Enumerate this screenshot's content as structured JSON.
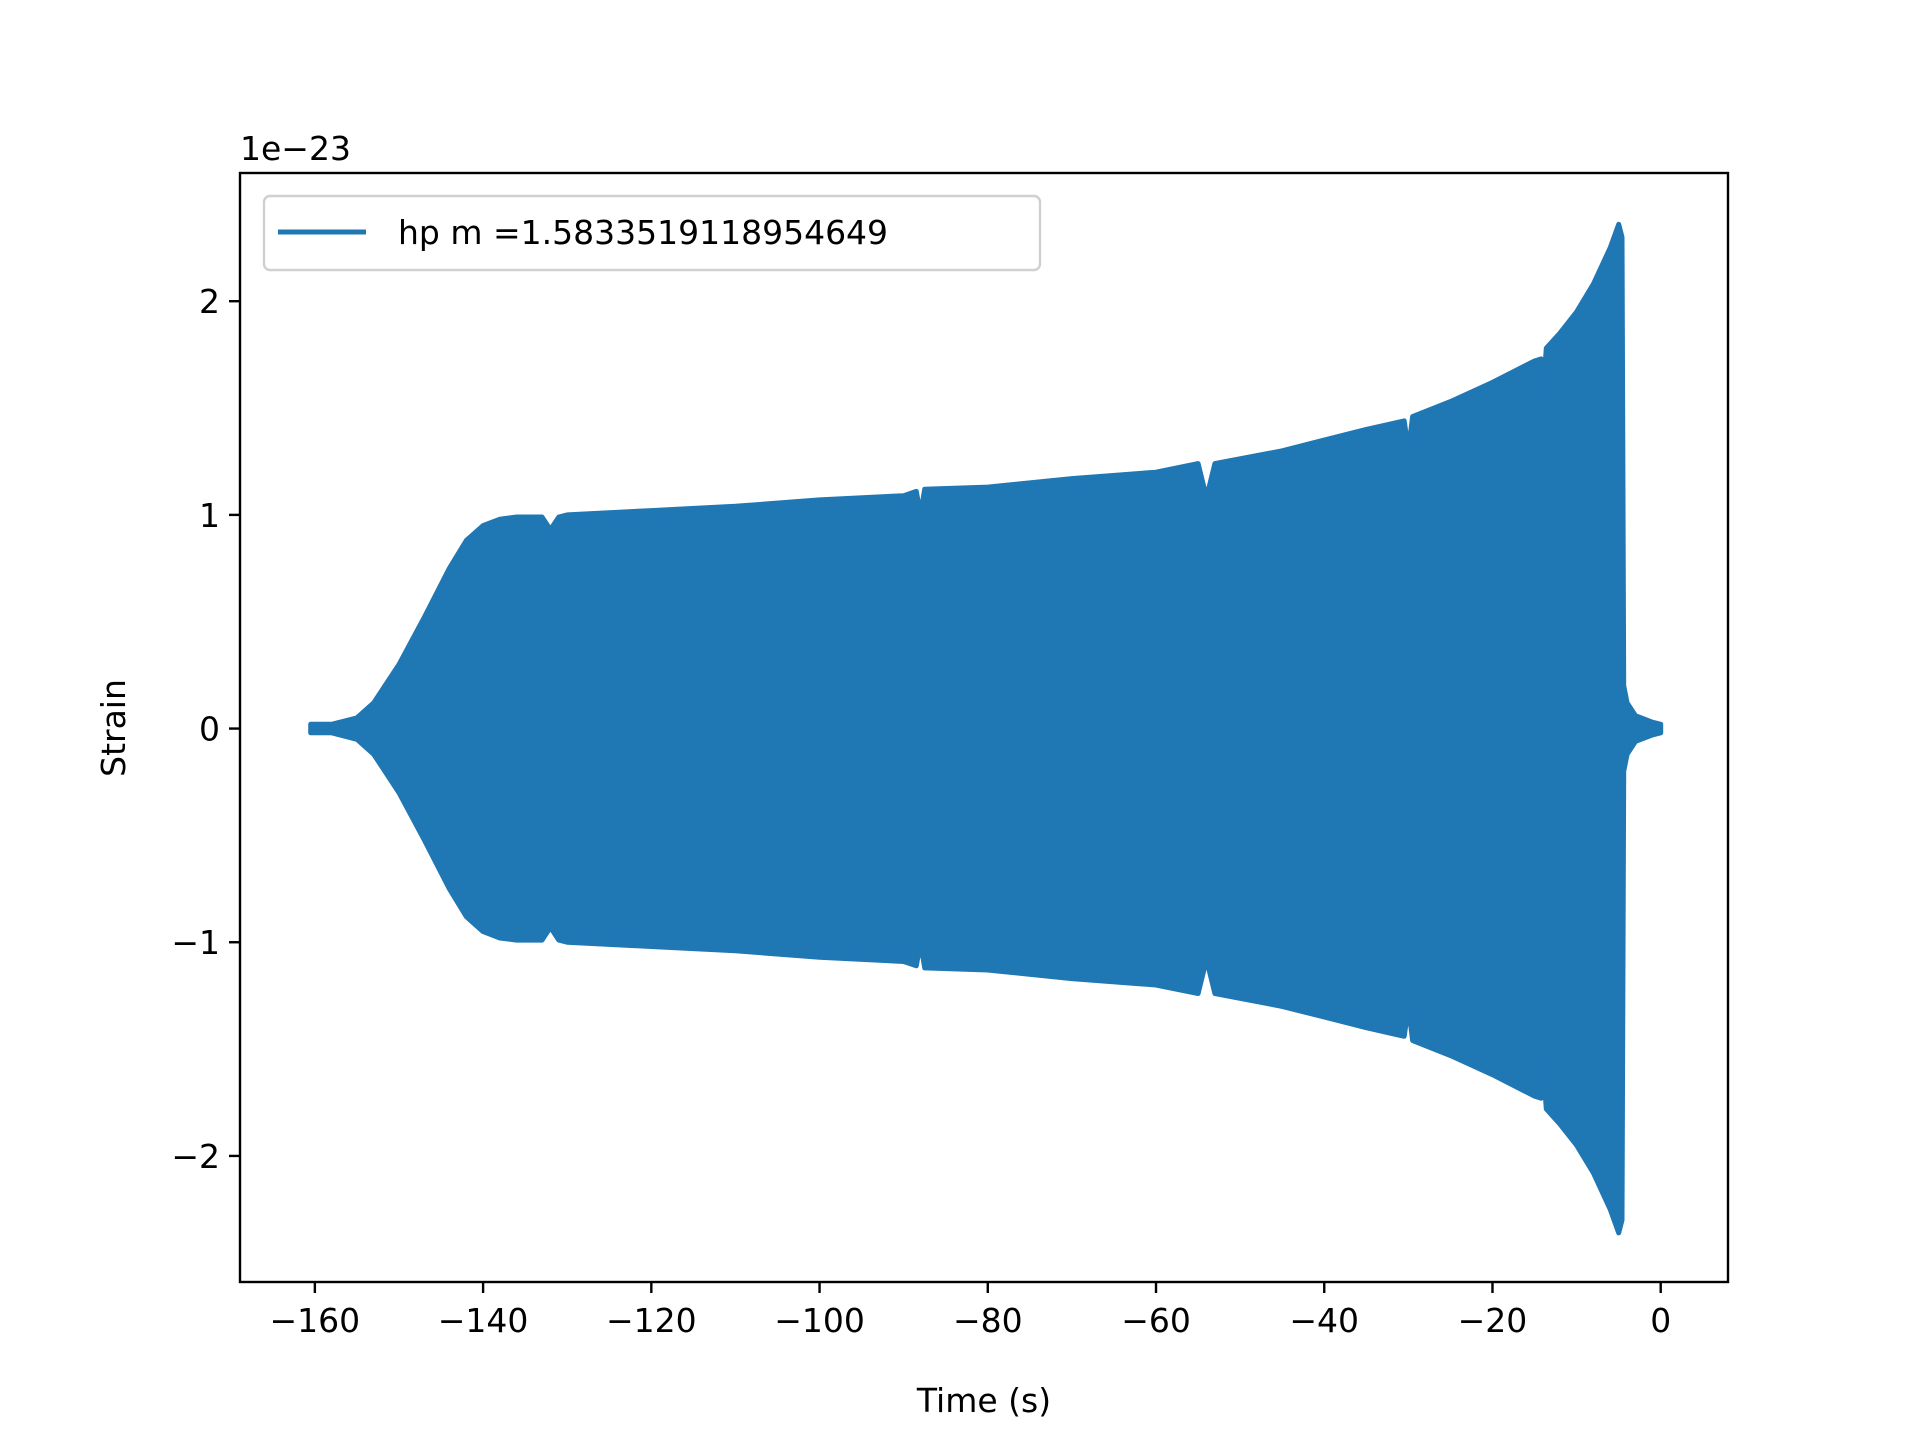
{
  "chart_data": {
    "type": "line",
    "title": "",
    "xlabel": "Time (s)",
    "ylabel": "Strain",
    "y_offset_label": "1e−23",
    "xlim": [
      -168.9,
      8.0
    ],
    "ylim": [
      -2.59,
      2.6
    ],
    "xticks": [
      -160,
      -140,
      -120,
      -100,
      -80,
      -60,
      -40,
      -20,
      0
    ],
    "xtick_labels": [
      "−160",
      "−140",
      "−120",
      "−100",
      "−80",
      "−60",
      "−40",
      "−20",
      "0"
    ],
    "yticks": [
      -2,
      -1,
      0,
      1,
      2
    ],
    "ytick_labels": [
      "−2",
      "−1",
      "0",
      "1",
      "2"
    ],
    "grid": false,
    "legend_placement": "upper-left",
    "series": [
      {
        "name": "hp m =1.5833519118954649",
        "color": "#1f77b4",
        "envelope_x": [
          -160.5,
          -158,
          -155,
          -153,
          -150,
          -147,
          -144,
          -142,
          -140,
          -138,
          -136,
          -133,
          -132,
          -131,
          -130,
          -120,
          -110,
          -100,
          -90,
          -88.5,
          -88,
          -87.5,
          -80,
          -70,
          -60,
          -55,
          -54,
          -53,
          -45,
          -40,
          -35,
          -30.5,
          -30,
          -29.5,
          -25,
          -20,
          -15,
          -14.2,
          -14,
          -13.6,
          -12,
          -10,
          -8,
          -6,
          -5,
          -4.6,
          -4.4,
          -4,
          -3,
          -1,
          0
        ],
        "envelope_amplitude": [
          0.02,
          0.02,
          0.05,
          0.12,
          0.3,
          0.52,
          0.75,
          0.88,
          0.95,
          0.98,
          0.99,
          0.99,
          0.93,
          0.99,
          1.0,
          1.02,
          1.04,
          1.07,
          1.09,
          1.11,
          1.0,
          1.12,
          1.13,
          1.17,
          1.2,
          1.24,
          1.08,
          1.24,
          1.3,
          1.35,
          1.4,
          1.44,
          1.3,
          1.46,
          1.53,
          1.62,
          1.72,
          1.73,
          1.55,
          1.78,
          1.85,
          1.95,
          2.08,
          2.25,
          2.36,
          2.3,
          0.2,
          0.12,
          0.06,
          0.03,
          0.02
        ]
      }
    ]
  }
}
